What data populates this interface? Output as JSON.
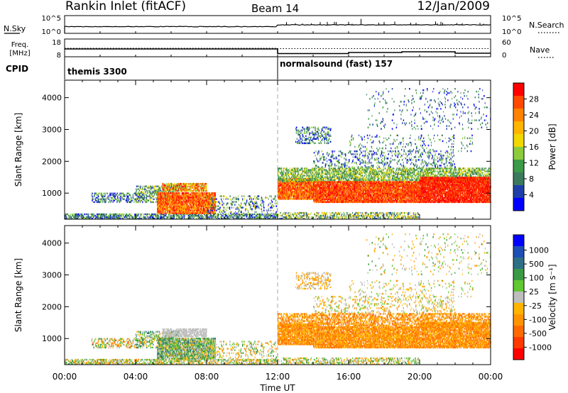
{
  "header": {
    "title": "Rankin Inlet (fitACF)",
    "beam": "Beam 14",
    "date": "12/Jan/2009"
  },
  "strips": {
    "nsky_label": "N.Sky",
    "nsearch_label": "N.Search",
    "nsky_ticks": [
      "10^5",
      "10^0"
    ],
    "nsearch_ticks": [
      "10^5",
      "10^0"
    ],
    "freq_label": "Freq.",
    "freq_unit": "[MHz]",
    "freq_ticks": [
      "18",
      "8"
    ],
    "nave_label": "Nave",
    "nave_ticks": [
      "60",
      "0"
    ],
    "cpid_label": "CPID",
    "cpid_segments": [
      {
        "name": "themis 3300",
        "start_hour": 0,
        "end_hour": 12
      },
      {
        "name": "normalsound (fast) 157",
        "start_hour": 12,
        "end_hour": 24
      }
    ]
  },
  "colors": {
    "power": [
      "#0000ff",
      "#1f3fa8",
      "#3c7a5e",
      "#3c9a48",
      "#8ccc3c",
      "#f0d800",
      "#ffb400",
      "#ff8200",
      "#ff4a00",
      "#ff0000"
    ],
    "velocity": [
      "#ff0000",
      "#ff3a00",
      "#ff6a00",
      "#ff9400",
      "#ffb400",
      "#bebebe",
      "#62c832",
      "#3a9a44",
      "#2e6f86",
      "#1d4fb6",
      "#0000ff"
    ]
  },
  "chart_data": [
    {
      "type": "heatmap",
      "name": "power",
      "ylabel": "Slant Range [km]",
      "xlim": [
        0,
        24
      ],
      "ylim": [
        180,
        4550
      ],
      "yticks": [
        "1000",
        "2000",
        "3000",
        "4000"
      ],
      "colorbar_label": "Power [dB]",
      "colorbar_ticks": [
        "4",
        "8",
        "12",
        "16",
        "20",
        "24",
        "28"
      ],
      "colorbar_range": [
        0,
        32
      ]
    },
    {
      "type": "heatmap",
      "name": "velocity",
      "ylabel": "Slant Range [km]",
      "xlabel": "Time UT",
      "xlim": [
        0,
        24
      ],
      "ylim": [
        180,
        4550
      ],
      "xticks": [
        "00:00",
        "04:00",
        "08:00",
        "12:00",
        "16:00",
        "20:00",
        "00:00"
      ],
      "yticks": [
        "1000",
        "2000",
        "3000",
        "4000"
      ],
      "colorbar_label": "Velocity [m s⁻¹]",
      "colorbar_ticks": [
        "1000",
        "500",
        "100",
        "25",
        "-25",
        "-100",
        "-500",
        "-1000"
      ]
    }
  ]
}
